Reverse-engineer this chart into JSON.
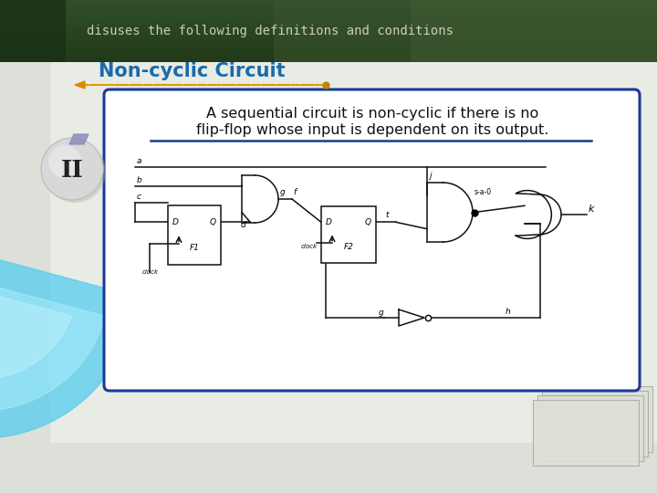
{
  "header_text": "disuses the following definitions and conditions",
  "header_text_color": "#ccccbb",
  "title_text": "Non-cyclic Circuit",
  "title_color": "#1a6aaa",
  "body_line1": "A sequential circuit is non-cyclic if there is no",
  "body_line2": "flip-flop whose input is dependent on its output.",
  "body_text_color": "#111111",
  "underline_color": "#1a3a8a",
  "roman_numeral": "II",
  "dotted_color": "#dd9900",
  "circuit_color": "#111111",
  "box_border_color": "#1a3a99",
  "slide_bg": "#dde0d8",
  "content_bg": "#e8ece5"
}
